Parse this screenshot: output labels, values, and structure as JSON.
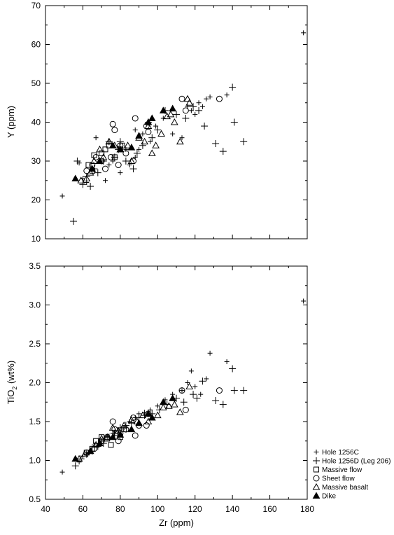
{
  "chart_data": [
    {
      "type": "scatter",
      "title": "",
      "ylabel": "Y (ppm)",
      "xlim": [
        40,
        180
      ],
      "ylim": [
        10,
        70
      ],
      "yticks": [
        10,
        20,
        30,
        40,
        50,
        60,
        70
      ],
      "series": [
        {
          "name": "Hole 1256C",
          "marker": "plus-small",
          "points": [
            [
              49,
              21
            ],
            [
              58,
              29.5
            ],
            [
              60,
              25.5
            ],
            [
              62,
              24.5
            ],
            [
              67,
              36
            ],
            [
              72,
              25
            ],
            [
              74,
              29
            ],
            [
              76,
              30
            ],
            [
              80,
              27
            ],
            [
              83,
              33
            ],
            [
              85,
              29
            ],
            [
              88,
              31
            ],
            [
              88,
              38
            ],
            [
              90,
              33
            ],
            [
              92,
              37
            ],
            [
              96,
              35
            ],
            [
              99,
              39
            ],
            [
              103,
              41
            ],
            [
              108,
              37
            ],
            [
              113,
              36
            ],
            [
              116,
              44
            ],
            [
              118,
              43
            ],
            [
              120,
              42
            ],
            [
              122,
              45
            ],
            [
              124,
              44
            ],
            [
              126,
              46
            ],
            [
              128,
              46.5
            ],
            [
              137,
              47
            ],
            [
              178,
              63
            ]
          ]
        },
        {
          "name": "Hole 1256D (Leg 206)",
          "marker": "plus",
          "points": [
            [
              55,
              14.5
            ],
            [
              57,
              30
            ],
            [
              60,
              24
            ],
            [
              62,
              26
            ],
            [
              64,
              23.5
            ],
            [
              66,
              28
            ],
            [
              68,
              27
            ],
            [
              71,
              30
            ],
            [
              74,
              35
            ],
            [
              77,
              31
            ],
            [
              79,
              33
            ],
            [
              80,
              35
            ],
            [
              83,
              30
            ],
            [
              87,
              28
            ],
            [
              89,
              32
            ],
            [
              92,
              34
            ],
            [
              95,
              40
            ],
            [
              97,
              36
            ],
            [
              100,
              38
            ],
            [
              104,
              43
            ],
            [
              110,
              42
            ],
            [
              115,
              41
            ],
            [
              119,
              44
            ],
            [
              122,
              43
            ],
            [
              125,
              39
            ],
            [
              131,
              34.5
            ],
            [
              135,
              32.5
            ],
            [
              140,
              49
            ],
            [
              141,
              40
            ],
            [
              146,
              35
            ]
          ]
        },
        {
          "name": "Massive flow",
          "marker": "square",
          "points": [
            [
              63,
              29
            ],
            [
              65,
              27.5
            ],
            [
              66,
              31.5
            ],
            [
              70,
              32
            ],
            [
              72,
              33
            ],
            [
              74,
              34
            ],
            [
              77,
              31
            ],
            [
              80,
              33
            ],
            [
              81,
              34
            ]
          ]
        },
        {
          "name": "Sheet flow",
          "marker": "circle",
          "points": [
            [
              62,
              27.5
            ],
            [
              65,
              29
            ],
            [
              67,
              31
            ],
            [
              70,
              30
            ],
            [
              72,
              28
            ],
            [
              75,
              31
            ],
            [
              76,
              39.5
            ],
            [
              77,
              38
            ],
            [
              79,
              29
            ],
            [
              80,
              34
            ],
            [
              83,
              32
            ],
            [
              87,
              30
            ],
            [
              88,
              41
            ],
            [
              94,
              39
            ],
            [
              95,
              37.5
            ],
            [
              113,
              46
            ],
            [
              115,
              43
            ],
            [
              133,
              46
            ]
          ]
        },
        {
          "name": "Massive basalt",
          "marker": "triangle",
          "points": [
            [
              59,
              25
            ],
            [
              62,
              25.5
            ],
            [
              64,
              27
            ],
            [
              66,
              30
            ],
            [
              69,
              33
            ],
            [
              71,
              31
            ],
            [
              74,
              35
            ],
            [
              77,
              34
            ],
            [
              80,
              33
            ],
            [
              84,
              34
            ],
            [
              86,
              30
            ],
            [
              90,
              36
            ],
            [
              93,
              35
            ],
            [
              95,
              39
            ],
            [
              97,
              32
            ],
            [
              99,
              34
            ],
            [
              102,
              37
            ],
            [
              105,
              41.5
            ],
            [
              107,
              42
            ],
            [
              109,
              40
            ],
            [
              112,
              35
            ],
            [
              116,
              46
            ],
            [
              117,
              45
            ]
          ]
        },
        {
          "name": "Dike",
          "marker": "triangle-filled",
          "points": [
            [
              56,
              25.5
            ],
            [
              65,
              28
            ],
            [
              69,
              30
            ],
            [
              76,
              34
            ],
            [
              80,
              33
            ],
            [
              86,
              33.5
            ],
            [
              90,
              36.5
            ],
            [
              95,
              40
            ],
            [
              97,
              41
            ],
            [
              103,
              43
            ],
            [
              108,
              43.5
            ]
          ]
        }
      ]
    },
    {
      "type": "scatter",
      "title": "",
      "xlabel": "Zr (ppm)",
      "ylabel_main": "TiO",
      "ylabel_sub": "2",
      "ylabel_tail": " (wt%)",
      "xlim": [
        40,
        180
      ],
      "ylim": [
        0.5,
        3.5
      ],
      "xticks": [
        40,
        60,
        80,
        100,
        120,
        140,
        160,
        180
      ],
      "yticks": [
        "0.5",
        "1.0",
        "1.5",
        "2.0",
        "2.5",
        "3.0",
        "3.5"
      ],
      "series": [
        {
          "name": "Hole 1256C",
          "marker": "plus-small",
          "points": [
            [
              49,
              0.85
            ],
            [
              58,
              0.98
            ],
            [
              60,
              1.05
            ],
            [
              63,
              1.1
            ],
            [
              66,
              1.2
            ],
            [
              70,
              1.25
            ],
            [
              73,
              1.3
            ],
            [
              76,
              1.35
            ],
            [
              79,
              1.38
            ],
            [
              82,
              1.42
            ],
            [
              85,
              1.5
            ],
            [
              88,
              1.55
            ],
            [
              90,
              1.6
            ],
            [
              93,
              1.62
            ],
            [
              96,
              1.65
            ],
            [
              100,
              1.7
            ],
            [
              104,
              1.78
            ],
            [
              108,
              1.85
            ],
            [
              113,
              1.9
            ],
            [
              116,
              2.0
            ],
            [
              118,
              2.15
            ],
            [
              120,
              1.95
            ],
            [
              123,
              1.85
            ],
            [
              126,
              2.05
            ],
            [
              128,
              2.38
            ],
            [
              137,
              2.27
            ],
            [
              178,
              3.05
            ]
          ]
        },
        {
          "name": "Hole 1256D (Leg 206)",
          "marker": "plus",
          "points": [
            [
              56,
              0.93
            ],
            [
              59,
              1.02
            ],
            [
              62,
              1.08
            ],
            [
              65,
              1.12
            ],
            [
              68,
              1.18
            ],
            [
              71,
              1.22
            ],
            [
              74,
              1.3
            ],
            [
              77,
              1.35
            ],
            [
              80,
              1.42
            ],
            [
              83,
              1.45
            ],
            [
              86,
              1.48
            ],
            [
              90,
              1.55
            ],
            [
              93,
              1.58
            ],
            [
              97,
              1.6
            ],
            [
              101,
              1.65
            ],
            [
              105,
              1.72
            ],
            [
              110,
              1.8
            ],
            [
              114,
              1.75
            ],
            [
              119,
              1.85
            ],
            [
              121,
              1.8
            ],
            [
              124,
              2.02
            ],
            [
              131,
              1.77
            ],
            [
              135,
              1.72
            ],
            [
              140,
              2.18
            ],
            [
              141,
              1.9
            ],
            [
              146,
              1.9
            ]
          ]
        },
        {
          "name": "Massive flow",
          "marker": "square",
          "points": [
            [
              62,
              1.1
            ],
            [
              65,
              1.15
            ],
            [
              67,
              1.25
            ],
            [
              70,
              1.3
            ],
            [
              73,
              1.28
            ],
            [
              75,
              1.2
            ],
            [
              78,
              1.35
            ],
            [
              80,
              1.3
            ],
            [
              82,
              1.4
            ]
          ]
        },
        {
          "name": "Sheet flow",
          "marker": "circle",
          "points": [
            [
              62,
              1.1
            ],
            [
              66,
              1.15
            ],
            [
              70,
              1.25
            ],
            [
              73,
              1.3
            ],
            [
              76,
              1.5
            ],
            [
              77,
              1.4
            ],
            [
              79,
              1.25
            ],
            [
              80,
              1.35
            ],
            [
              83,
              1.4
            ],
            [
              87,
              1.55
            ],
            [
              88,
              1.32
            ],
            [
              90,
              1.45
            ],
            [
              94,
              1.45
            ],
            [
              95,
              1.6
            ],
            [
              113,
              1.9
            ],
            [
              115,
              1.65
            ],
            [
              133,
              1.9
            ]
          ]
        },
        {
          "name": "Massive basalt",
          "marker": "triangle",
          "points": [
            [
              58,
              1.02
            ],
            [
              61,
              1.08
            ],
            [
              64,
              1.12
            ],
            [
              67,
              1.2
            ],
            [
              70,
              1.28
            ],
            [
              73,
              1.3
            ],
            [
              76,
              1.42
            ],
            [
              79,
              1.38
            ],
            [
              82,
              1.45
            ],
            [
              86,
              1.52
            ],
            [
              89,
              1.5
            ],
            [
              92,
              1.58
            ],
            [
              95,
              1.5
            ],
            [
              97,
              1.55
            ],
            [
              100,
              1.58
            ],
            [
              103,
              1.68
            ],
            [
              106,
              1.7
            ],
            [
              109,
              1.72
            ],
            [
              112,
              1.62
            ],
            [
              117,
              1.95
            ]
          ]
        },
        {
          "name": "Dike",
          "marker": "triangle-filled",
          "points": [
            [
              56,
              1.02
            ],
            [
              64,
              1.12
            ],
            [
              69,
              1.22
            ],
            [
              76,
              1.3
            ],
            [
              80,
              1.33
            ],
            [
              86,
              1.4
            ],
            [
              90,
              1.48
            ],
            [
              95,
              1.6
            ],
            [
              97,
              1.55
            ],
            [
              103,
              1.75
            ],
            [
              108,
              1.8
            ]
          ]
        }
      ]
    }
  ],
  "legend": {
    "items": [
      {
        "label": "Hole 1256C",
        "marker": "plus-small"
      },
      {
        "label": "Hole 1256D (Leg 206)",
        "marker": "plus"
      },
      {
        "label": "Massive flow",
        "marker": "square"
      },
      {
        "label": "Sheet flow",
        "marker": "circle"
      },
      {
        "label": "Massive basalt",
        "marker": "triangle"
      },
      {
        "label": "Dike",
        "marker": "triangle-filled"
      }
    ]
  },
  "colors": {
    "ink": "#000000",
    "background": "#ffffff"
  }
}
